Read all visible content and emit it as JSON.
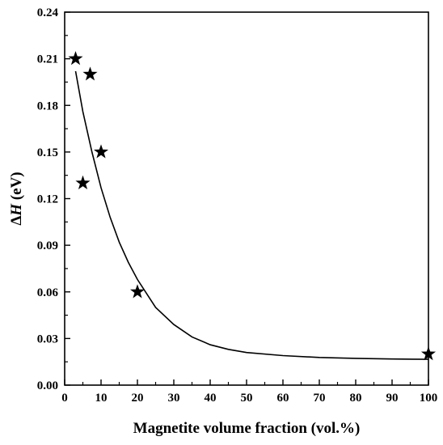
{
  "chart_data": {
    "type": "scatter",
    "xlabel": "Magnetite volume fraction (vol.%)",
    "ylabel_prefix": "Δ",
    "ylabel_symbol": "H",
    "ylabel_suffix": " (eV)",
    "xlim": [
      0,
      100
    ],
    "ylim": [
      0,
      0.24
    ],
    "x_ticks": [
      0,
      10,
      20,
      30,
      40,
      50,
      60,
      70,
      80,
      90,
      100
    ],
    "y_ticks": [
      "0.00",
      "0.03",
      "0.06",
      "0.09",
      "0.12",
      "0.15",
      "0.18",
      "0.21",
      "0.24"
    ],
    "grid": false,
    "series": [
      {
        "marker": "star",
        "color": "#000000",
        "points": [
          {
            "x": 3,
            "y": 0.21
          },
          {
            "x": 5,
            "y": 0.13
          },
          {
            "x": 7,
            "y": 0.2
          },
          {
            "x": 10,
            "y": 0.15
          },
          {
            "x": 20,
            "y": 0.06
          },
          {
            "x": 100,
            "y": 0.02
          }
        ]
      }
    ],
    "fit_curve": {
      "color": "#000000",
      "points": [
        {
          "x": 3,
          "y": 0.202
        },
        {
          "x": 5,
          "y": 0.176
        },
        {
          "x": 7.5,
          "y": 0.15
        },
        {
          "x": 10,
          "y": 0.127
        },
        {
          "x": 12.5,
          "y": 0.108
        },
        {
          "x": 15,
          "y": 0.092
        },
        {
          "x": 17.5,
          "y": 0.079
        },
        {
          "x": 20,
          "y": 0.068
        },
        {
          "x": 25,
          "y": 0.05
        },
        {
          "x": 30,
          "y": 0.039
        },
        {
          "x": 35,
          "y": 0.031
        },
        {
          "x": 40,
          "y": 0.026
        },
        {
          "x": 45,
          "y": 0.023
        },
        {
          "x": 50,
          "y": 0.021
        },
        {
          "x": 60,
          "y": 0.019
        },
        {
          "x": 70,
          "y": 0.0178
        },
        {
          "x": 80,
          "y": 0.0172
        },
        {
          "x": 90,
          "y": 0.0168
        },
        {
          "x": 100,
          "y": 0.0166
        }
      ]
    }
  }
}
